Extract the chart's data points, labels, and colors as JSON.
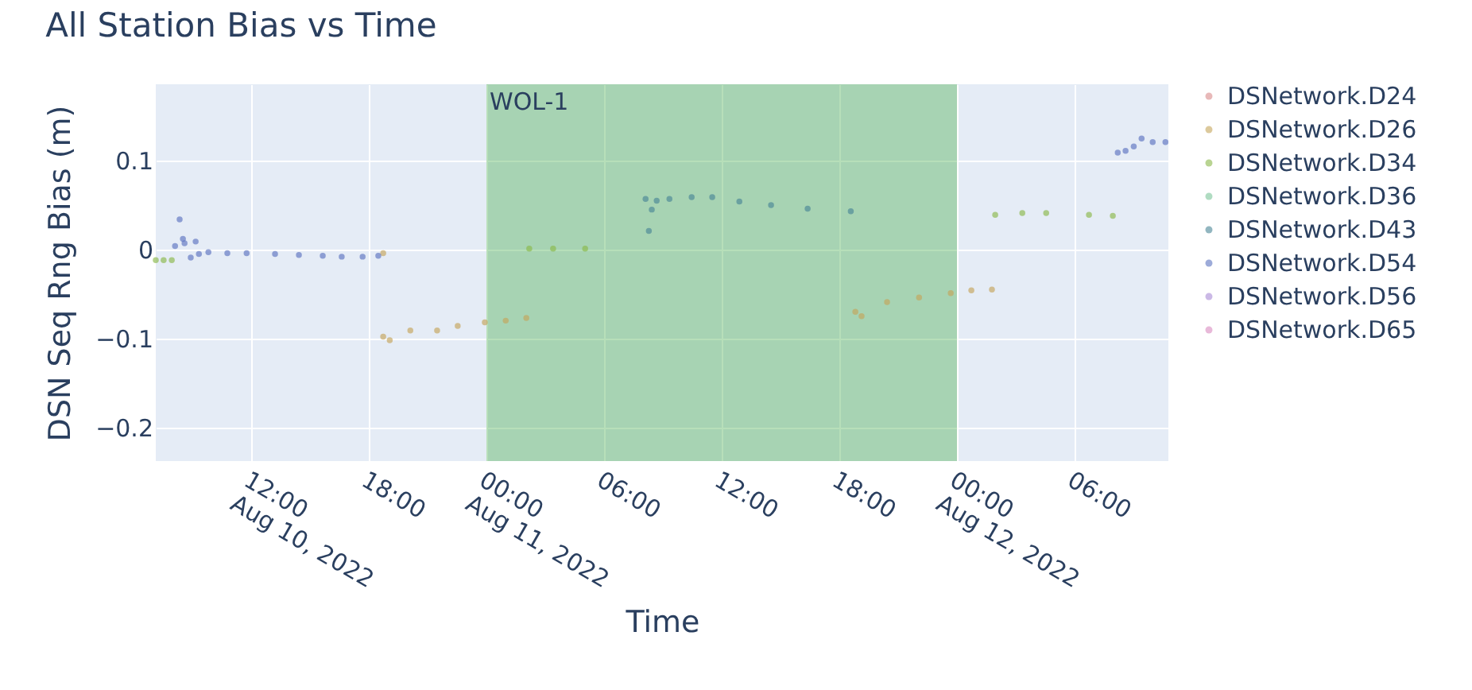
{
  "chart_data": {
    "type": "scatter",
    "title": "All Station Bias vs Time",
    "xlabel": "Time",
    "ylabel": "DSN Seq Rng Bias (m)",
    "xlim": [
      "2022-08-10T07:08",
      "2022-08-12T10:47"
    ],
    "xticks": [
      {
        "value": "2022-08-10T12:00",
        "label": "12:00\nAug 10, 2022"
      },
      {
        "value": "2022-08-10T18:00",
        "label": "18:00"
      },
      {
        "value": "2022-08-11T00:00",
        "label": "00:00\nAug 11, 2022"
      },
      {
        "value": "2022-08-11T06:00",
        "label": "06:00"
      },
      {
        "value": "2022-08-11T12:00",
        "label": "12:00"
      },
      {
        "value": "2022-08-11T18:00",
        "label": "18:00"
      },
      {
        "value": "2022-08-12T00:00",
        "label": "00:00\nAug 12, 2022"
      },
      {
        "value": "2022-08-12T06:00",
        "label": "06:00"
      }
    ],
    "ylim": [
      -0.238,
      0.186
    ],
    "yticks": [
      {
        "value": -0.2,
        "label": "−0.2"
      },
      {
        "value": -0.1,
        "label": "−0.1"
      },
      0,
      0.1
    ],
    "grid": true,
    "legend": "right",
    "marker": "circle",
    "bands": [
      {
        "axis": "x",
        "from": "2022-08-11T00:00",
        "to": "2022-08-12T00:00",
        "label": "WOL-1",
        "color": "#4caf50"
      }
    ],
    "series": [
      {
        "name": "DSNetwork.D24",
        "color": "#d98a8a"
      },
      {
        "name": "DSNetwork.D26",
        "color": "#c4a55a",
        "x": [
          "2022-08-10T18:44",
          "2022-08-10T18:44",
          "2022-08-10T19:04",
          "2022-08-10T20:07",
          "2022-08-10T21:29",
          "2022-08-10T22:32",
          "2022-08-10T23:55",
          "2022-08-11T00:59",
          "2022-08-11T02:02",
          "2022-08-11T18:49",
          "2022-08-11T19:08",
          "2022-08-11T20:26",
          "2022-08-11T22:04",
          "2022-08-11T23:41",
          "2022-08-12T00:44",
          "2022-08-12T01:47"
        ],
        "values": [
          -0.004,
          -0.098,
          -0.102,
          -0.091,
          -0.091,
          -0.086,
          -0.082,
          -0.08,
          -0.077,
          -0.07,
          -0.075,
          -0.059,
          -0.054,
          -0.049,
          -0.046,
          -0.045
        ]
      },
      {
        "name": "DSNetwork.D34",
        "color": "#8ab84a",
        "x": [
          "2022-08-10T07:08",
          "2022-08-10T07:32",
          "2022-08-10T07:57",
          "2022-08-11T02:11",
          "2022-08-11T03:24",
          "2022-08-11T05:02",
          "2022-08-12T01:57",
          "2022-08-12T03:20",
          "2022-08-12T04:33",
          "2022-08-12T06:44",
          "2022-08-12T07:57"
        ],
        "values": [
          -0.012,
          -0.012,
          -0.012,
          0.001,
          0.001,
          0.001,
          0.039,
          0.041,
          0.041,
          0.039,
          0.038
        ]
      },
      {
        "name": "DSNetwork.D36",
        "color": "#7cc49a"
      },
      {
        "name": "DSNetwork.D43",
        "color": "#4a8596",
        "x": [
          "2022-08-11T08:07",
          "2022-08-11T08:17",
          "2022-08-11T08:26",
          "2022-08-11T08:41",
          "2022-08-11T09:20",
          "2022-08-11T10:28",
          "2022-08-11T11:31",
          "2022-08-11T12:54",
          "2022-08-11T14:31",
          "2022-08-11T16:23",
          "2022-08-11T18:35"
        ],
        "values": [
          0.057,
          0.021,
          0.045,
          0.055,
          0.057,
          0.059,
          0.059,
          0.054,
          0.05,
          0.046,
          0.043
        ]
      },
      {
        "name": "DSNetwork.D54",
        "color": "#5c73c0",
        "x": [
          "2022-08-10T08:07",
          "2022-08-10T08:21",
          "2022-08-10T08:31",
          "2022-08-10T08:36",
          "2022-08-10T08:55",
          "2022-08-10T09:10",
          "2022-08-10T09:20",
          "2022-08-10T09:49",
          "2022-08-10T10:47",
          "2022-08-10T11:46",
          "2022-08-10T13:13",
          "2022-08-10T14:26",
          "2022-08-10T15:39",
          "2022-08-10T16:37",
          "2022-08-10T17:41",
          "2022-08-10T18:29",
          "2022-08-12T08:12",
          "2022-08-12T08:36",
          "2022-08-12T09:01",
          "2022-08-12T09:25",
          "2022-08-12T09:59",
          "2022-08-12T10:38"
        ],
        "values": [
          0.004,
          0.034,
          0.012,
          0.007,
          -0.009,
          0.009,
          -0.005,
          -0.003,
          -0.004,
          -0.004,
          -0.005,
          -0.006,
          -0.007,
          -0.008,
          -0.008,
          -0.007,
          0.109,
          0.111,
          0.116,
          0.125,
          0.121,
          0.121
        ]
      },
      {
        "name": "DSNetwork.D56",
        "color": "#a98ad6"
      },
      {
        "name": "DSNetwork.D65",
        "color": "#d98ac0"
      }
    ]
  }
}
